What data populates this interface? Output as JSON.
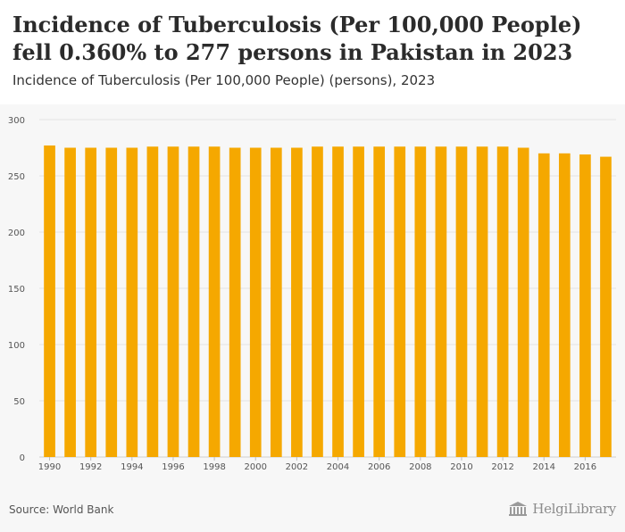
{
  "header": {
    "title": "Incidence of Tuberculosis (Per 100,000 People) fell 0.360% to 277 persons in Pakistan in 2023",
    "subtitle": "Incidence of Tuberculosis (Per 100,000 People) (persons), 2023"
  },
  "footer": {
    "source": "Source: World Bank",
    "logo_text": "HelgiLibrary",
    "logo_icon": "library-building-icon"
  },
  "colors": {
    "bar": "#f5a800",
    "grid": "#e3e3e3",
    "axis_text": "#555555"
  },
  "chart_data": {
    "type": "bar",
    "categories": [
      "1990",
      "1991",
      "1992",
      "1993",
      "1994",
      "1995",
      "1996",
      "1997",
      "1998",
      "1999",
      "2000",
      "2001",
      "2002",
      "2003",
      "2004",
      "2005",
      "2006",
      "2007",
      "2008",
      "2009",
      "2010",
      "2011",
      "2012",
      "2013",
      "2014",
      "2015",
      "2016",
      "2017"
    ],
    "tick_labels": [
      "1990",
      "1992",
      "1994",
      "1996",
      "1998",
      "2000",
      "2002",
      "2004",
      "2006",
      "2008",
      "2010",
      "2012",
      "2014",
      "2016"
    ],
    "values": [
      277,
      275,
      275,
      275,
      275,
      276,
      276,
      276,
      276,
      275,
      275,
      275,
      275,
      276,
      276,
      276,
      276,
      276,
      276,
      276,
      276,
      276,
      276,
      275,
      270,
      270,
      269,
      267
    ],
    "ylim": [
      0,
      300
    ],
    "yticks": [
      0,
      50,
      100,
      150,
      200,
      250,
      300
    ],
    "grid": true
  }
}
